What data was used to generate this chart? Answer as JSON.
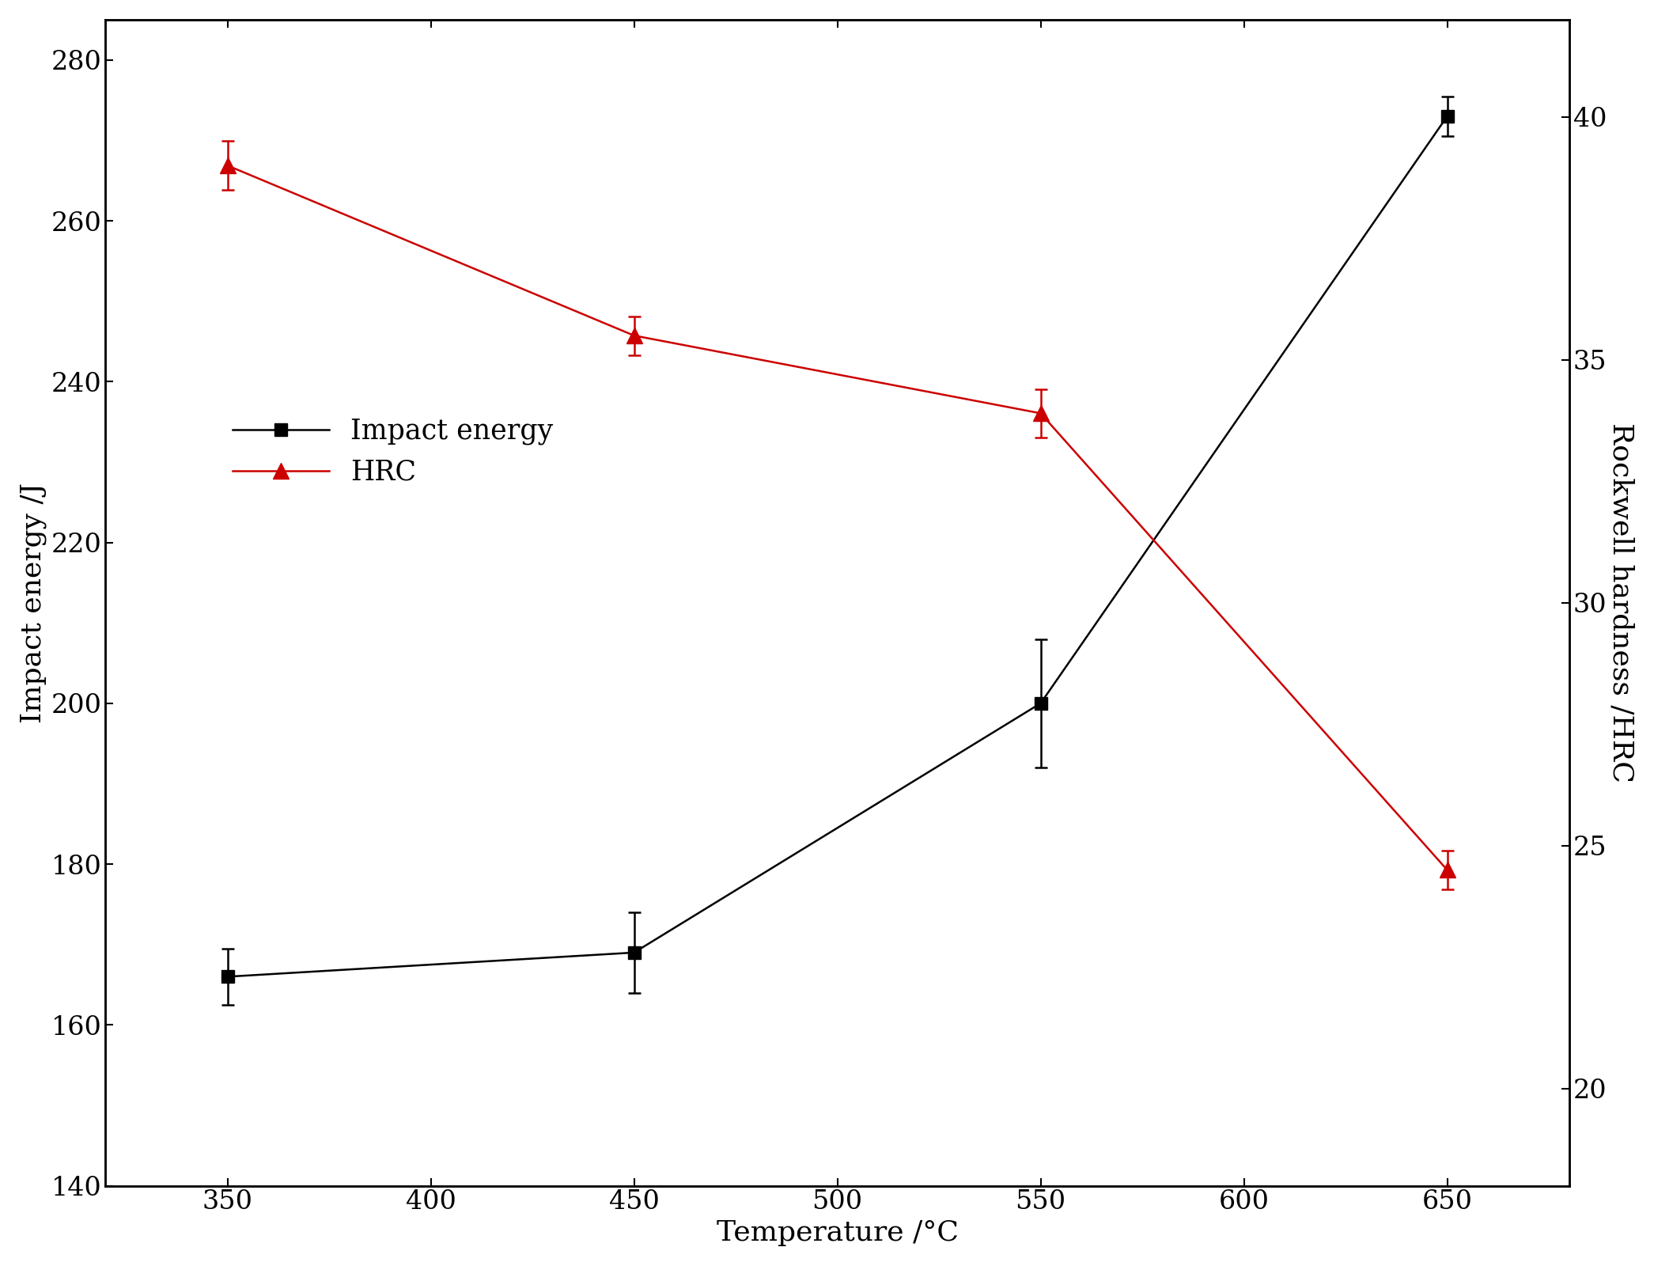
{
  "temperature": [
    350,
    450,
    550,
    650
  ],
  "impact_energy": [
    166,
    169,
    200,
    273
  ],
  "impact_energy_err": [
    3.5,
    5.0,
    8.0,
    2.5
  ],
  "hrc": [
    39.0,
    35.5,
    33.9,
    24.5
  ],
  "hrc_err": [
    0.5,
    0.4,
    0.5,
    0.4
  ],
  "impact_color": "#000000",
  "hrc_color": "#cc0000",
  "xlabel": "Temperature /°C",
  "ylabel_left": "Impact energy /J",
  "ylabel_right": "Rockwell hardness /HRC",
  "xlim": [
    320,
    680
  ],
  "ylim_left": [
    140,
    285
  ],
  "ylim_right": [
    18,
    42
  ],
  "yticks_left": [
    140,
    160,
    180,
    200,
    220,
    240,
    260,
    280
  ],
  "yticks_right": [
    20,
    25,
    30,
    35,
    40
  ],
  "xticks": [
    350,
    400,
    450,
    500,
    550,
    600,
    650
  ],
  "legend_labels": [
    "Impact energy",
    "HRC"
  ],
  "fontsize_label": 26,
  "fontsize_tick": 24,
  "fontsize_legend": 25
}
